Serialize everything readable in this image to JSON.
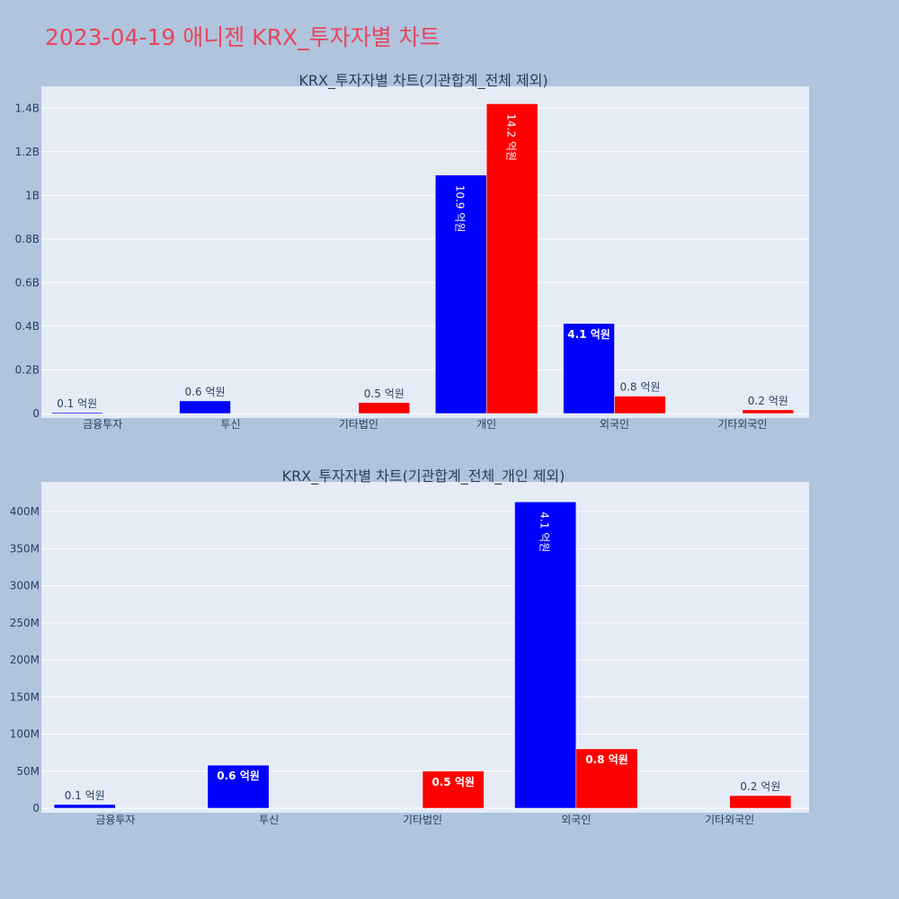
{
  "page_title": "2023-04-19 애니젠 KRX_투자자별 차트",
  "colors": {
    "buy": "#0000ff",
    "sell": "#ff0000",
    "plot_bg": "#e5ecf6",
    "page_bg": "#b0c4de"
  },
  "chart_data": [
    {
      "type": "bar",
      "title": "KRX_투자자별 차트(기관합계_전체 제외)",
      "categories": [
        "금융투자",
        "투신",
        "기타법인",
        "개인",
        "외국인",
        "기타외국인"
      ],
      "series": [
        {
          "color": "#0000ff",
          "values": [
            5000000,
            58000000,
            0,
            1093000000,
            413000000,
            0
          ],
          "labels": [
            "0.1 억원",
            "0.6 억원",
            "",
            "10.9 억원",
            "4.1 억원",
            ""
          ]
        },
        {
          "color": "#ff0000",
          "values": [
            0,
            0,
            50000000,
            1420000000,
            80000000,
            17000000
          ],
          "labels": [
            "",
            "",
            "0.5 억원",
            "14.2 억원",
            "0.8 억원",
            "0.2 억원"
          ]
        }
      ],
      "ylim": [
        0,
        1500000000
      ],
      "yticks": [
        0,
        200000000,
        400000000,
        600000000,
        800000000,
        1000000000,
        1200000000,
        1400000000
      ],
      "ytick_labels": [
        "0",
        "0.2B",
        "0.4B",
        "0.6B",
        "0.8B",
        "1B",
        "1.2B",
        "1.4B"
      ],
      "grid": true
    },
    {
      "type": "bar",
      "title": "KRX_투자자별 차트(기관합계_전체_개인 제외)",
      "categories": [
        "금융투자",
        "투신",
        "기타법인",
        "외국인",
        "기타외국인"
      ],
      "series": [
        {
          "color": "#0000ff",
          "values": [
            5000000,
            58000000,
            0,
            413000000,
            0
          ],
          "labels": [
            "0.1 억원",
            "0.6 억원",
            "",
            "4.1 억원",
            ""
          ]
        },
        {
          "color": "#ff0000",
          "values": [
            0,
            0,
            50000000,
            80000000,
            17000000
          ],
          "labels": [
            "",
            "",
            "0.5 억원",
            "0.8 억원",
            "0.2 억원"
          ]
        }
      ],
      "ylim": [
        0,
        440000000
      ],
      "yticks": [
        0,
        50000000,
        100000000,
        150000000,
        200000000,
        250000000,
        300000000,
        350000000,
        400000000
      ],
      "ytick_labels": [
        "0",
        "50M",
        "100M",
        "150M",
        "200M",
        "250M",
        "300M",
        "350M",
        "400M"
      ],
      "grid": true
    }
  ]
}
